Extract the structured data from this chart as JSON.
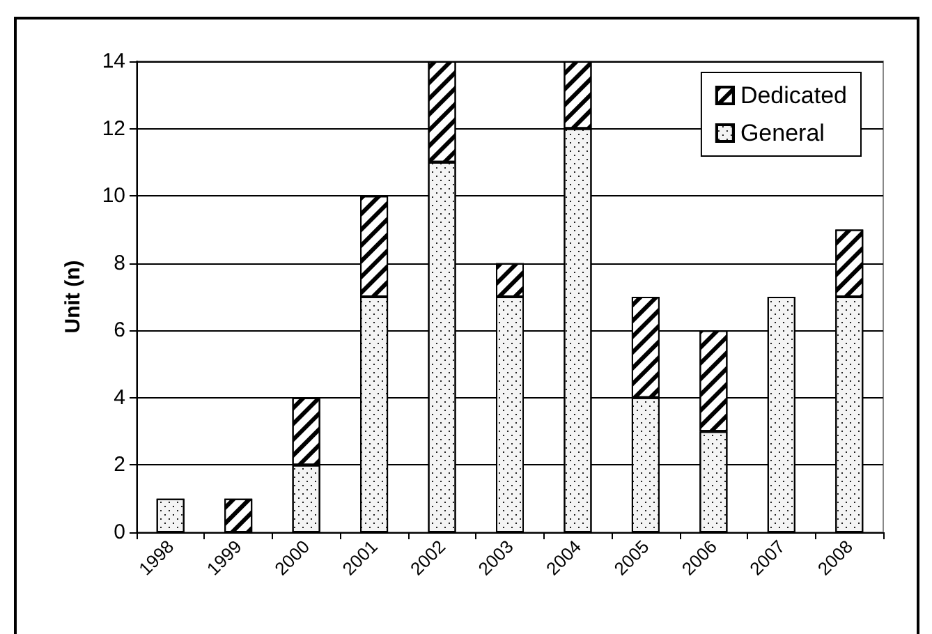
{
  "chart_data": {
    "type": "bar",
    "stacked": true,
    "ylabel": "Unit (n)",
    "categories": [
      "1998",
      "1999",
      "2000",
      "2001",
      "2002",
      "2003",
      "2004",
      "2005",
      "2006",
      "2007",
      "2008"
    ],
    "series": [
      {
        "name": "General",
        "color": "#f4f4f4",
        "values": [
          1,
          0,
          2,
          7,
          11,
          7,
          12,
          4,
          3,
          7,
          7
        ]
      },
      {
        "name": "Dedicated",
        "color": "#ffffff",
        "values": [
          0,
          1,
          2,
          3,
          3,
          1,
          2,
          3,
          3,
          0,
          2
        ]
      }
    ],
    "ylim": [
      0,
      14
    ],
    "yticks": [
      0,
      2,
      4,
      6,
      8,
      10,
      12,
      14
    ],
    "grid": "y",
    "legend": "top right"
  }
}
